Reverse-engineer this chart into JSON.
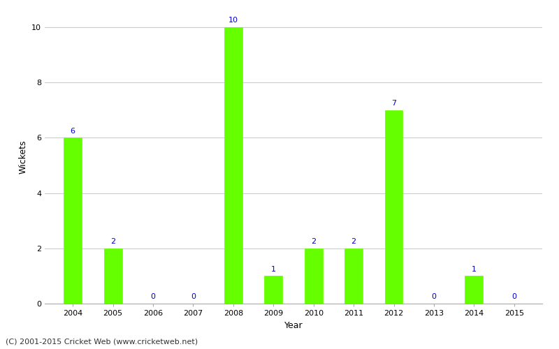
{
  "years": [
    2004,
    2005,
    2006,
    2007,
    2008,
    2009,
    2010,
    2011,
    2012,
    2013,
    2014,
    2015
  ],
  "wickets": [
    6,
    2,
    0,
    0,
    10,
    1,
    2,
    2,
    7,
    0,
    1,
    0
  ],
  "bar_color": "#66ff00",
  "bar_edge_color": "#66ff00",
  "label_color": "#0000cc",
  "xlabel": "Year",
  "ylabel": "Wickets",
  "ylim": [
    0,
    10.6
  ],
  "yticks": [
    0,
    2,
    4,
    6,
    8,
    10
  ],
  "label_fontsize": 8,
  "axis_label_fontsize": 9,
  "tick_fontsize": 8,
  "footer_text": "(C) 2001-2015 Cricket Web (www.cricketweb.net)",
  "footer_fontsize": 8,
  "background_color": "#ffffff",
  "grid_color": "#cccccc",
  "bar_width": 0.45
}
